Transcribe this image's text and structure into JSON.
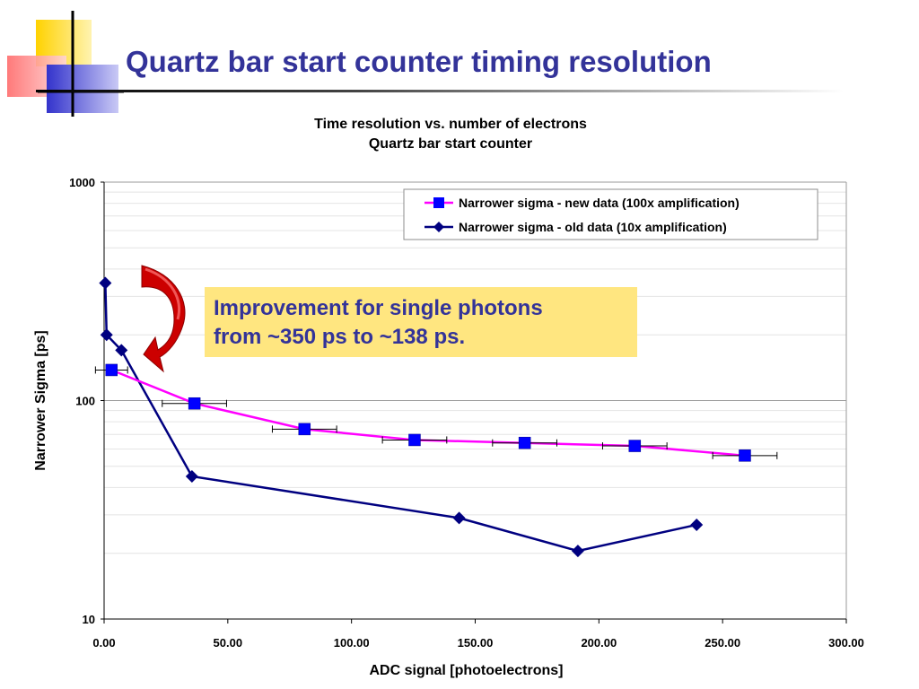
{
  "slide": {
    "title": "Quartz bar start counter timing resolution"
  },
  "callout": {
    "line1": "Improvement for single photons",
    "line2": "from ~350 ps to ~138 ps."
  },
  "colors": {
    "title": "#333399",
    "new_series": "#ff00ff",
    "new_marker": "#0000ff",
    "old_series": "#000080",
    "callout_bg": "#ffe680",
    "arrow": "#cc0000"
  },
  "chart_data": {
    "type": "scatter",
    "title_line1": "Time resolution vs. number of electrons",
    "title_line2": "Quartz bar start counter",
    "xlabel": "ADC signal [photoelectrons]",
    "ylabel": "Narrower Sigma [ps]",
    "xlim": [
      0,
      300
    ],
    "ylim": [
      10,
      1000
    ],
    "yscale": "log",
    "x_ticks": [
      "0.00",
      "50.00",
      "100.00",
      "150.00",
      "200.00",
      "250.00",
      "300.00"
    ],
    "y_ticks": [
      "10",
      "100",
      "1000"
    ],
    "grid": true,
    "legend_position": "top-right",
    "series": [
      {
        "name": "Narrower sigma - new data (100x amplification)",
        "marker": "square",
        "points": [
          {
            "x": 3,
            "y": 138,
            "xerr": 6.5
          },
          {
            "x": 36.5,
            "y": 97,
            "xerr": 13
          },
          {
            "x": 81,
            "y": 74,
            "xerr": 13
          },
          {
            "x": 125.5,
            "y": 66,
            "xerr": 13
          },
          {
            "x": 170,
            "y": 64,
            "xerr": 13
          },
          {
            "x": 214.5,
            "y": 62,
            "xerr": 13
          },
          {
            "x": 259,
            "y": 56,
            "xerr": 13
          }
        ]
      },
      {
        "name": "Narrower sigma - old data (10x amplification)",
        "marker": "diamond",
        "points": [
          {
            "x": 0.5,
            "y": 345
          },
          {
            "x": 1,
            "y": 200
          },
          {
            "x": 7,
            "y": 170
          },
          {
            "x": 35.5,
            "y": 45
          },
          {
            "x": 143.5,
            "y": 29
          },
          {
            "x": 191.5,
            "y": 20.5
          },
          {
            "x": 239.5,
            "y": 27
          }
        ]
      }
    ]
  }
}
